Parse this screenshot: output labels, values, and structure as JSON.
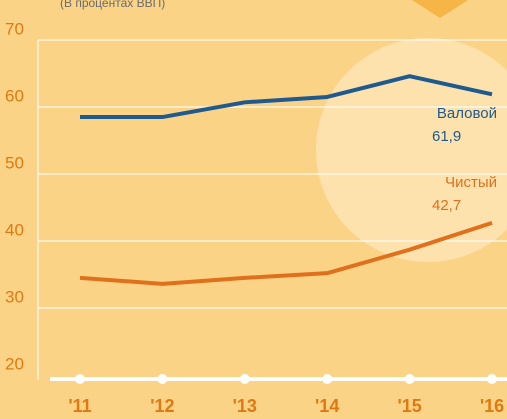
{
  "chart_data": {
    "type": "line",
    "subtitle": "(В процентах ВВП)",
    "categories": [
      "'11",
      "'12",
      "'13",
      "'14",
      "'15",
      "'16"
    ],
    "series": [
      {
        "name": "Валовой",
        "color": "#1f5a8e",
        "values": [
          58.5,
          58.5,
          60.7,
          61.5,
          64.6,
          61.9
        ],
        "value_labels": [
          null,
          null,
          null,
          null,
          null,
          "61,9"
        ]
      },
      {
        "name": "Чистый",
        "color": "#e0701c",
        "values": [
          34.5,
          33.6,
          34.5,
          35.2,
          38.7,
          42.7
        ],
        "value_labels": [
          null,
          null,
          null,
          null,
          null,
          "42,7"
        ]
      }
    ],
    "ylim": [
      20,
      70
    ],
    "yticks": [
      20,
      30,
      40,
      50,
      60,
      70
    ],
    "grid": true
  }
}
